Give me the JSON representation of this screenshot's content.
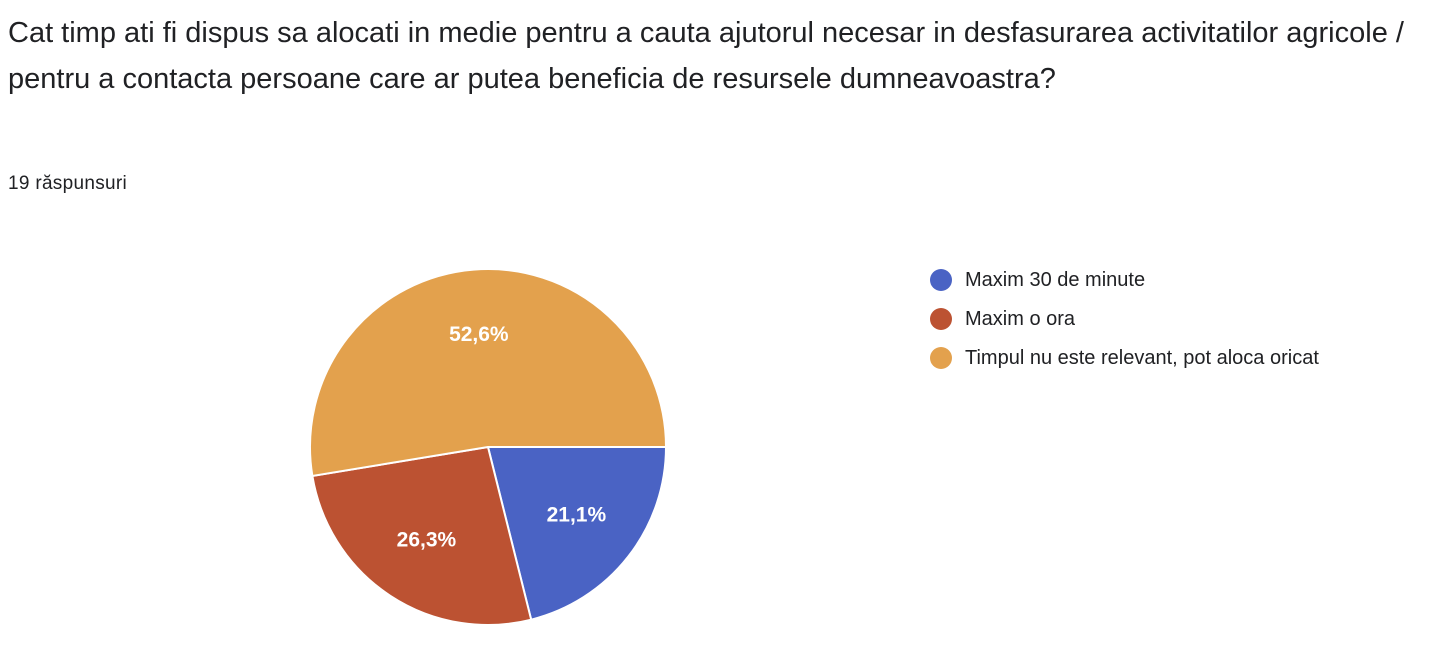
{
  "question": {
    "title": "Cat timp ati fi dispus sa alocati in medie pentru a cauta ajutorul necesar in desfasurarea activitatilor agricole / pentru a contacta persoane care ar putea beneficia de resursele dumneavoastra?",
    "response_count": "19 răspunsuri"
  },
  "chart_data": {
    "type": "pie",
    "categories": [
      "Maxim 30 de minute",
      "Maxim o ora",
      "Timpul nu este relevant, pot aloca oricat"
    ],
    "values": [
      21.1,
      26.3,
      52.6
    ],
    "value_labels": [
      "21,1%",
      "26,3%",
      "52,6%"
    ],
    "colors": [
      "#4a63c4",
      "#bc5232",
      "#e3a14d"
    ],
    "legend_placement": "right"
  }
}
